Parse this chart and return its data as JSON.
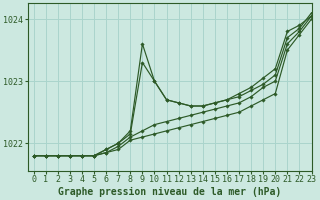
{
  "title": "Graphe pression niveau de la mer (hPa)",
  "background_color": "#cce8e0",
  "grid_color": "#aad4cc",
  "line_color": "#2d5a27",
  "ylim": [
    1021.55,
    1024.25
  ],
  "xlim": [
    -0.5,
    23
  ],
  "yticks": [
    1022,
    1023,
    1024
  ],
  "xticks": [
    0,
    1,
    2,
    3,
    4,
    5,
    6,
    7,
    8,
    9,
    10,
    11,
    12,
    13,
    14,
    15,
    16,
    17,
    18,
    19,
    20,
    21,
    22,
    23
  ],
  "series": [
    [
      1021.8,
      1021.8,
      1021.8,
      1021.8,
      1021.8,
      1021.8,
      1021.85,
      1021.9,
      1022.05,
      1022.1,
      1022.15,
      1022.2,
      1022.25,
      1022.3,
      1022.35,
      1022.4,
      1022.45,
      1022.5,
      1022.6,
      1022.7,
      1022.8,
      1023.5,
      1023.75,
      1024.0
    ],
    [
      1021.8,
      1021.8,
      1021.8,
      1021.8,
      1021.8,
      1021.8,
      1021.85,
      1021.95,
      1022.1,
      1022.2,
      1022.3,
      1022.35,
      1022.4,
      1022.45,
      1022.5,
      1022.55,
      1022.6,
      1022.65,
      1022.75,
      1022.9,
      1023.0,
      1023.6,
      1023.8,
      1024.05
    ],
    [
      1021.8,
      1021.8,
      1021.8,
      1021.8,
      1021.8,
      1021.8,
      1021.9,
      1022.0,
      1022.15,
      1023.3,
      1023.0,
      1022.7,
      1022.65,
      1022.6,
      1022.6,
      1022.65,
      1022.7,
      1022.75,
      1022.85,
      1022.95,
      1023.1,
      1023.7,
      1023.85,
      1024.1
    ],
    [
      1021.8,
      1021.8,
      1021.8,
      1021.8,
      1021.8,
      1021.8,
      1021.9,
      1022.0,
      1022.2,
      1023.6,
      1023.0,
      1022.7,
      1022.65,
      1022.6,
      1022.6,
      1022.65,
      1022.7,
      1022.8,
      1022.9,
      1023.05,
      1023.2,
      1023.8,
      1023.9,
      1024.05
    ]
  ],
  "tick_fontsize": 6,
  "xlabel_fontsize": 7
}
